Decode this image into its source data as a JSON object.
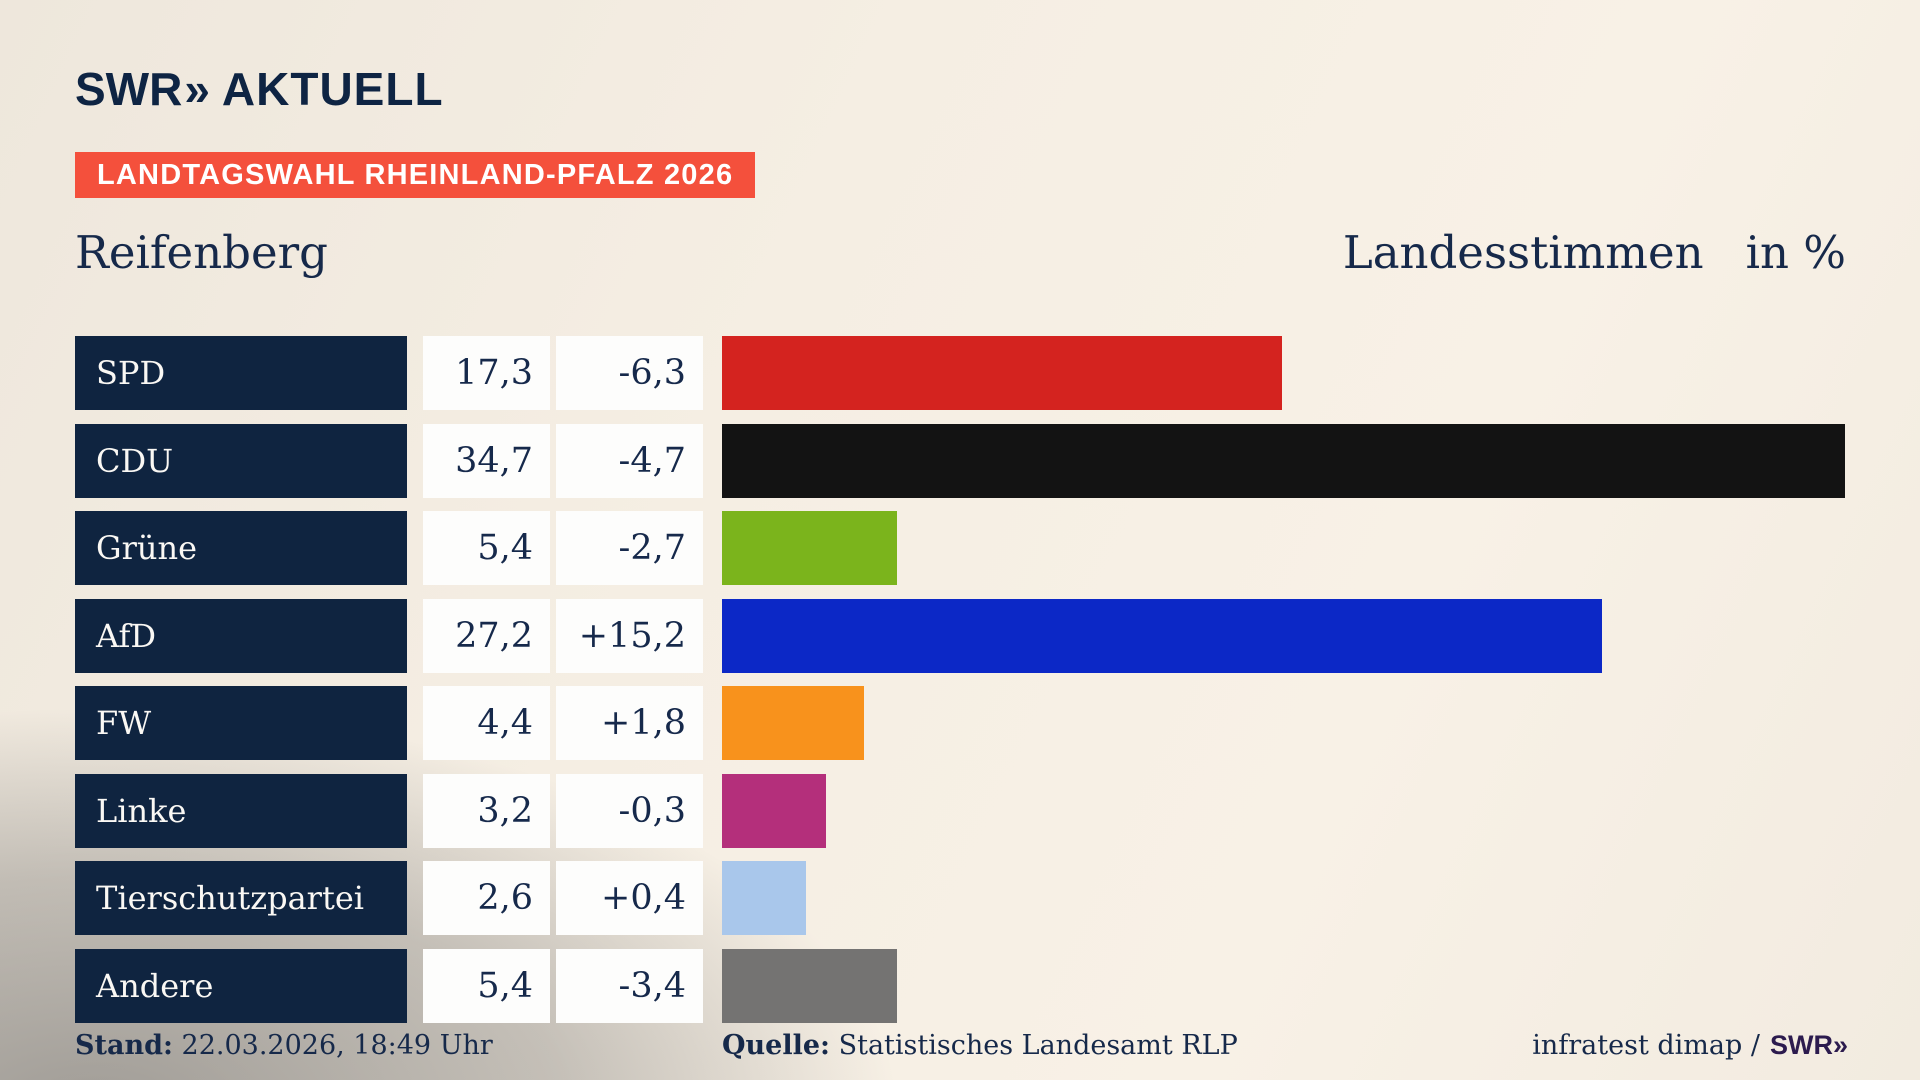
{
  "header": {
    "logo_swr": "SWR",
    "logo_chevron": "»",
    "logo_suffix": "AKTUELL",
    "banner": "LANDTAGSWAHL RHEINLAND-PFALZ 2026",
    "region": "Reifenberg",
    "measure": "Landesstimmen",
    "unit": "in %"
  },
  "chart_data": {
    "type": "bar",
    "title": "Landtagswahl Rheinland-Pfalz 2026 – Reifenberg – Landesstimmen in %",
    "orientation": "horizontal",
    "categories": [
      "SPD",
      "CDU",
      "Grüne",
      "AfD",
      "FW",
      "Linke",
      "Tierschutzpartei",
      "Andere"
    ],
    "values": [
      17.3,
      34.7,
      5.4,
      27.2,
      4.4,
      3.2,
      2.6,
      5.4
    ],
    "value_labels": [
      "17,3",
      "34,7",
      "5,4",
      "27,2",
      "4,4",
      "3,2",
      "2,6",
      "5,4"
    ],
    "change_values": [
      -6.3,
      -4.7,
      -2.7,
      15.2,
      1.8,
      -0.3,
      0.4,
      -3.4
    ],
    "change_labels": [
      "-6,3",
      "-4,7",
      "-2,7",
      "+15,2",
      "+1,8",
      "-0,3",
      "+0,4",
      "-3,4"
    ],
    "bar_colors": [
      "#d4231f",
      "#131313",
      "#7bb41c",
      "#0c28c6",
      "#f8921c",
      "#b42f7b",
      "#a9c7eb",
      "#747372"
    ],
    "xlabel": "",
    "ylabel": "",
    "xlim": [
      0,
      34.7
    ],
    "grid": false,
    "legend": false,
    "unit": "%"
  },
  "footer": {
    "stand_label": "Stand:",
    "stand_value": "22.03.2026, 18:49 Uhr",
    "quelle_label": "Quelle:",
    "quelle_value": "Statistisches Landesamt RLP",
    "credit": "infratest dimap /",
    "credit_brand": "SWR»"
  }
}
